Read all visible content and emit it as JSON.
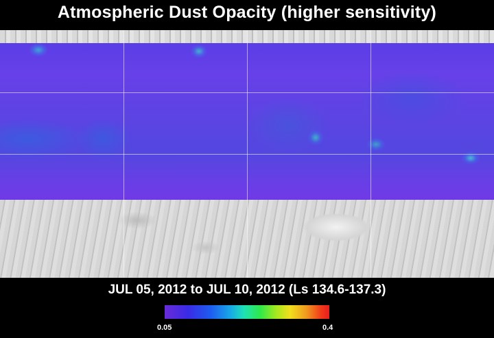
{
  "title": "Atmospheric Dust Opacity (higher sensitivity)",
  "date_range": "JUL 05, 2012 to JUL 10, 2012 (Ls 134.6-137.3)",
  "colorbar": {
    "min_label": "0.05",
    "max_label": "0.4"
  },
  "colors": {
    "background": "#000000",
    "dust_low": "#6a2bd8",
    "dust_high": "#e81e1e",
    "grid": "#ffffff"
  }
}
